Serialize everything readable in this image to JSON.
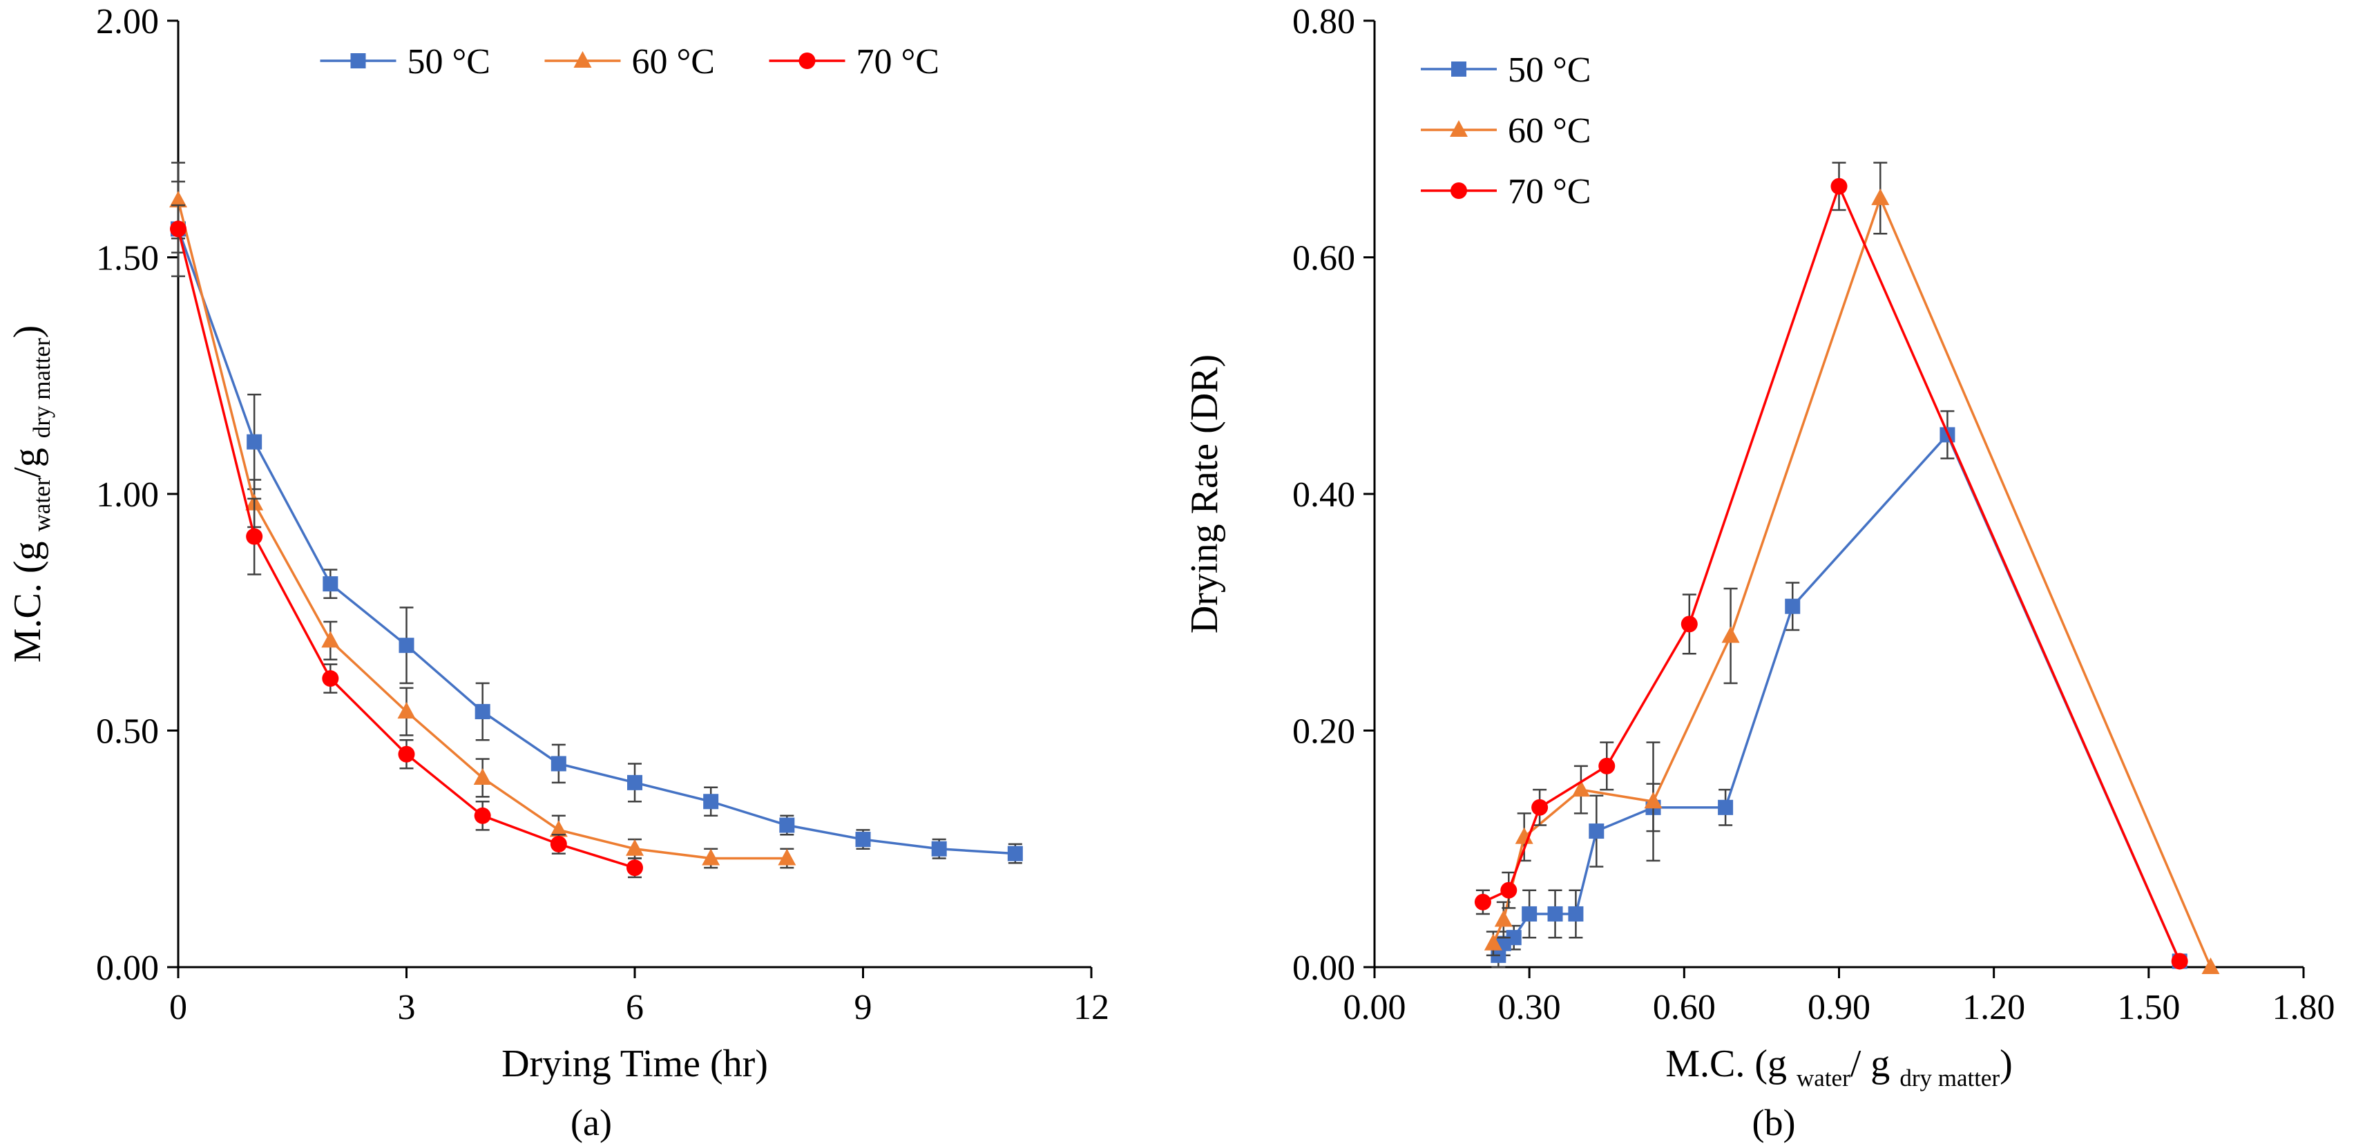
{
  "figure": {
    "background": "#ffffff",
    "colors": {
      "axis": "#000000",
      "error_bar": "#3f3f3f"
    }
  },
  "chart_data": [
    {
      "type": "line",
      "caption": "(a)",
      "xlabel_text": "Drying Time (hr)",
      "ylabel_text": "M.C. (g water/g dry matter)",
      "xlabel_segments": [
        {
          "t": "Drying Time (hr)"
        }
      ],
      "ylabel_segments": [
        {
          "t": "M.C. (g "
        },
        {
          "t": "water",
          "sub": true
        },
        {
          "t": "/g "
        },
        {
          "t": "dry matter",
          "sub": true
        },
        {
          "t": ")"
        }
      ],
      "xlim": [
        0,
        12
      ],
      "ylim": [
        0,
        2
      ],
      "xticks": [
        {
          "v": 0,
          "label": "0"
        },
        {
          "v": 3,
          "label": "3"
        },
        {
          "v": 6,
          "label": "6"
        },
        {
          "v": 9,
          "label": "9"
        },
        {
          "v": 12,
          "label": "12"
        }
      ],
      "yticks": [
        {
          "v": 0,
          "label": "0.00"
        },
        {
          "v": 0.5,
          "label": "0.50"
        },
        {
          "v": 1,
          "label": "1.00"
        },
        {
          "v": 1.5,
          "label": "1.50"
        },
        {
          "v": 2,
          "label": "2.00"
        }
      ],
      "grid": false,
      "legend": {
        "orientation": "horizontal",
        "position": "top-center",
        "labels": [
          "50 °C",
          "60 °C",
          "70 °C"
        ]
      },
      "series": [
        {
          "name": "50 °C",
          "color": "#4472C4",
          "marker": "square",
          "points": [
            {
              "x": 0,
              "y": 1.56,
              "e": 0.1
            },
            {
              "x": 1,
              "y": 1.11,
              "e": 0.1
            },
            {
              "x": 2,
              "y": 0.81,
              "e": 0.03
            },
            {
              "x": 3,
              "y": 0.68,
              "e": 0.08
            },
            {
              "x": 4,
              "y": 0.54,
              "e": 0.06
            },
            {
              "x": 5,
              "y": 0.43,
              "e": 0.04
            },
            {
              "x": 6,
              "y": 0.39,
              "e": 0.04
            },
            {
              "x": 7,
              "y": 0.35,
              "e": 0.03
            },
            {
              "x": 8,
              "y": 0.3,
              "e": 0.02
            },
            {
              "x": 9,
              "y": 0.27,
              "e": 0.02
            },
            {
              "x": 10,
              "y": 0.25,
              "e": 0.02
            },
            {
              "x": 11,
              "y": 0.24,
              "e": 0.02
            }
          ]
        },
        {
          "name": "60 °C",
          "color": "#ED7D31",
          "marker": "triangle",
          "points": [
            {
              "x": 0,
              "y": 1.62,
              "e": 0.08
            },
            {
              "x": 1,
              "y": 0.98,
              "e": 0.05
            },
            {
              "x": 2,
              "y": 0.69,
              "e": 0.04
            },
            {
              "x": 3,
              "y": 0.54,
              "e": 0.05
            },
            {
              "x": 4,
              "y": 0.4,
              "e": 0.04
            },
            {
              "x": 5,
              "y": 0.29,
              "e": 0.03
            },
            {
              "x": 6,
              "y": 0.25,
              "e": 0.02
            },
            {
              "x": 7,
              "y": 0.23,
              "e": 0.02
            },
            {
              "x": 8,
              "y": 0.23,
              "e": 0.02
            }
          ]
        },
        {
          "name": "70 °C",
          "color": "#FF0000",
          "marker": "circle",
          "points": [
            {
              "x": 0,
              "y": 1.56,
              "e": 0.05
            },
            {
              "x": 1,
              "y": 0.91,
              "e": 0.08
            },
            {
              "x": 2,
              "y": 0.61,
              "e": 0.03
            },
            {
              "x": 3,
              "y": 0.45,
              "e": 0.03
            },
            {
              "x": 4,
              "y": 0.32,
              "e": 0.03
            },
            {
              "x": 5,
              "y": 0.26,
              "e": 0.02
            },
            {
              "x": 6,
              "y": 0.21,
              "e": 0.02
            }
          ]
        }
      ]
    },
    {
      "type": "line",
      "caption": "(b)",
      "xlabel_text": "M.C. (g water/ g dry matter)",
      "ylabel_text": "Drying Rate (DR)",
      "xlabel_segments": [
        {
          "t": "M.C. (g "
        },
        {
          "t": "water",
          "sub": true
        },
        {
          "t": "/ g "
        },
        {
          "t": "dry matter",
          "sub": true
        },
        {
          "t": ")"
        }
      ],
      "ylabel_segments": [
        {
          "t": "Drying Rate (DR)"
        }
      ],
      "xlim": [
        0,
        1.8
      ],
      "ylim": [
        0,
        0.8
      ],
      "xticks": [
        {
          "v": 0,
          "label": "0.00"
        },
        {
          "v": 0.3,
          "label": "0.30"
        },
        {
          "v": 0.6,
          "label": "0.60"
        },
        {
          "v": 0.9,
          "label": "0.90"
        },
        {
          "v": 1.2,
          "label": "1.20"
        },
        {
          "v": 1.5,
          "label": "1.50"
        },
        {
          "v": 1.8,
          "label": "1.80"
        }
      ],
      "yticks": [
        {
          "v": 0,
          "label": "0.00"
        },
        {
          "v": 0.2,
          "label": "0.20"
        },
        {
          "v": 0.4,
          "label": "0.40"
        },
        {
          "v": 0.6,
          "label": "0.60"
        },
        {
          "v": 0.8,
          "label": "0.80"
        }
      ],
      "grid": false,
      "legend": {
        "orientation": "vertical",
        "position": "top-left",
        "labels": [
          "50 °C",
          "60 °C",
          "70 °C"
        ]
      },
      "series": [
        {
          "name": "50 °C",
          "color": "#4472C4",
          "marker": "square",
          "points": [
            {
              "x": 1.56,
              "y": 0.005
            },
            {
              "x": 1.11,
              "y": 0.45,
              "e": 0.02
            },
            {
              "x": 0.81,
              "y": 0.305,
              "e": 0.02
            },
            {
              "x": 0.68,
              "y": 0.135,
              "e": 0.015
            },
            {
              "x": 0.54,
              "y": 0.135,
              "e": 0.02
            },
            {
              "x": 0.43,
              "y": 0.115,
              "e": 0.03
            },
            {
              "x": 0.39,
              "y": 0.045,
              "e": 0.02
            },
            {
              "x": 0.35,
              "y": 0.045,
              "e": 0.02
            },
            {
              "x": 0.3,
              "y": 0.045,
              "e": 0.02
            },
            {
              "x": 0.27,
              "y": 0.025,
              "e": 0.01
            },
            {
              "x": 0.25,
              "y": 0.02,
              "e": 0.01
            },
            {
              "x": 0.24,
              "y": 0.01,
              "e": 0.01
            }
          ]
        },
        {
          "name": "60 °C",
          "color": "#ED7D31",
          "marker": "triangle",
          "points": [
            {
              "x": 1.62,
              "y": 0.0
            },
            {
              "x": 0.98,
              "y": 0.65,
              "e": 0.03
            },
            {
              "x": 0.69,
              "y": 0.28,
              "e": 0.04
            },
            {
              "x": 0.54,
              "y": 0.14,
              "e": 0.05
            },
            {
              "x": 0.4,
              "y": 0.15,
              "e": 0.02
            },
            {
              "x": 0.29,
              "y": 0.11,
              "e": 0.02
            },
            {
              "x": 0.25,
              "y": 0.04,
              "e": 0.015
            },
            {
              "x": 0.23,
              "y": 0.02,
              "e": 0.01
            }
          ]
        },
        {
          "name": "70 °C",
          "color": "#FF0000",
          "marker": "circle",
          "points": [
            {
              "x": 1.56,
              "y": 0.005
            },
            {
              "x": 0.9,
              "y": 0.66,
              "e": 0.02
            },
            {
              "x": 0.61,
              "y": 0.29,
              "e": 0.025
            },
            {
              "x": 0.45,
              "y": 0.17,
              "e": 0.02
            },
            {
              "x": 0.32,
              "y": 0.135,
              "e": 0.015
            },
            {
              "x": 0.26,
              "y": 0.065,
              "e": 0.015
            },
            {
              "x": 0.21,
              "y": 0.055,
              "e": 0.01
            }
          ]
        }
      ]
    }
  ]
}
